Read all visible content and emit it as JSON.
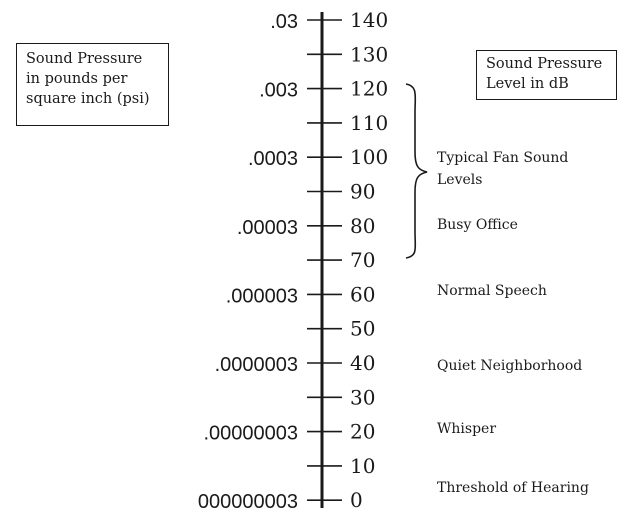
{
  "left_label": "Sound Pressure\nin pounds per\nsquare inch (psi)",
  "right_label": "Sound Pressure\nLevel in dB",
  "db_ticks": [
    "140",
    "130",
    "120",
    "110",
    "100",
    "90",
    "80",
    "70",
    "60",
    "50",
    "40",
    "30",
    "20",
    "10",
    "0"
  ],
  "psi_values": [
    ".03",
    ".003",
    ".0003",
    ".00003",
    ".000003",
    ".0000003",
    ".00000003",
    "000000003"
  ],
  "annotations": {
    "fan": "Typical Fan Sound\nLevels",
    "office": "Busy Office",
    "speech": "Normal Speech",
    "neighborhood": "Quiet Neighborhood",
    "whisper": "Whisper",
    "threshold": "Threshold of Hearing"
  }
}
